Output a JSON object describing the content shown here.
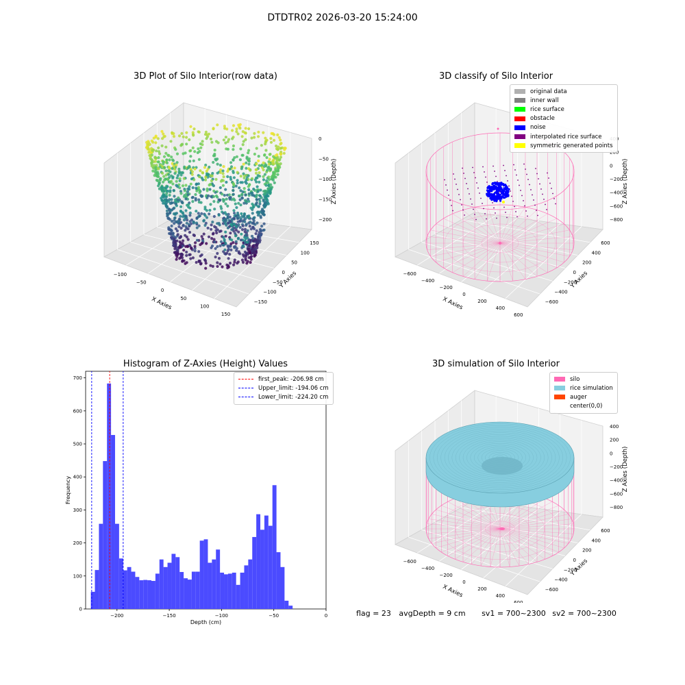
{
  "suptitle": "DTDTR02 2026-03-20 15:24:00",
  "footer": {
    "flag": "flag = 23",
    "avg_depth": "avgDepth = 9 cm",
    "sv1": "sv1 = 700~2300",
    "sv2": "sv2 = 700~2300"
  },
  "colors": {
    "histogram_bar": "#4b4bff",
    "first_peak_line": "#ff0000",
    "limit_lines": "#0000ff",
    "silo_wire": "#ff69b4",
    "rice_surface": "#87cedf",
    "noise_blob": "#0000ff"
  },
  "chart_data": [
    {
      "type": "scatter",
      "title": "3D Plot of Silo Interior(row data)",
      "xlabel": "X Axies",
      "ylabel": "Y Axies",
      "zlabel": "Z Axies (Depth)",
      "x_ticks": [
        "−100",
        "−50",
        "0",
        "50",
        "100",
        "150"
      ],
      "y_ticks": [
        "−150",
        "−100",
        "−50",
        "0",
        "50",
        "100",
        "150"
      ],
      "z_ticks": [
        "0",
        "−50",
        "−100",
        "−150",
        "−200"
      ],
      "xlim": [
        -130,
        150
      ],
      "ylim": [
        -160,
        160
      ],
      "zlim": [
        -220,
        0
      ],
      "colormap": "viridis"
    },
    {
      "type": "scatter",
      "title": "3D classify of Silo Interior",
      "xlabel": "X Axies",
      "ylabel": "Y Axies",
      "zlabel": "Z Axies (Depth)",
      "x_ticks": [
        "−600",
        "−400",
        "−200",
        "0",
        "200",
        "400",
        "600"
      ],
      "y_ticks": [
        "−600",
        "−400",
        "−200",
        "0",
        "200",
        "400",
        "600"
      ],
      "z_ticks": [
        "400",
        "200",
        "0",
        "−200",
        "−400",
        "−600",
        "−800"
      ],
      "legend": [
        {
          "label": "original data",
          "color": "#b0b0b0"
        },
        {
          "label": "inner wall",
          "color": "#808080"
        },
        {
          "label": "rice surface",
          "color": "#00ff00"
        },
        {
          "label": "obstacle",
          "color": "#ff0000"
        },
        {
          "label": "noise",
          "color": "#0000ff"
        },
        {
          "label": "interpolated rice surface",
          "color": "#800080"
        },
        {
          "label": "symmetric generated points",
          "color": "#ffff00"
        }
      ],
      "legend_position": "upper right"
    },
    {
      "type": "bar",
      "title": "Histogram of Z-Axies (Height) Values",
      "xlabel": "Depth (cm)",
      "ylabel": "Frequency",
      "bin_start": -225,
      "bin_width": 3.86,
      "values": [
        52,
        118,
        258,
        448,
        683,
        527,
        258,
        153,
        117,
        127,
        113,
        97,
        87,
        88,
        87,
        85,
        107,
        150,
        127,
        140,
        167,
        157,
        112,
        93,
        89,
        113,
        113,
        207,
        211,
        140,
        150,
        180,
        110,
        105,
        107,
        110,
        73,
        110,
        132,
        150,
        218,
        287,
        240,
        283,
        252,
        375,
        172,
        127,
        25,
        10
      ],
      "xlim": [
        -230,
        0
      ],
      "ylim": [
        0,
        720
      ],
      "x_ticks": [
        "−200",
        "−150",
        "−100",
        "−50",
        "0"
      ],
      "y_ticks": [
        "0",
        "100",
        "200",
        "300",
        "400",
        "500",
        "600",
        "700"
      ],
      "vlines": [
        {
          "label": "first_peak: -206.98 cm",
          "x": -206.98,
          "color": "#ff0000"
        },
        {
          "label": "Upper_limit: -194.06 cm",
          "x": -194.06,
          "color": "#0000ff"
        },
        {
          "label": "Lower_limit: -224.20 cm",
          "x": -224.2,
          "color": "#0000ff"
        }
      ],
      "legend_position": "upper right"
    },
    {
      "type": "area",
      "title": "3D simulation of Silo Interior",
      "xlabel": "X Axies",
      "ylabel": "Y Axies",
      "zlabel": "Z Axies (Depth)",
      "x_ticks": [
        "−600",
        "−400",
        "−200",
        "0",
        "200",
        "400",
        "600"
      ],
      "y_ticks": [
        "−600",
        "−400",
        "−200",
        "0",
        "200",
        "400",
        "600"
      ],
      "z_ticks": [
        "400",
        "200",
        "0",
        "−200",
        "−400",
        "−600",
        "−800"
      ],
      "legend": [
        {
          "label": "silo",
          "color": "#ff69b4"
        },
        {
          "label": "rice simulation",
          "color": "#87cedf"
        },
        {
          "label": "auger",
          "color": "#ff4500"
        },
        {
          "label": "center(0,0)",
          "color": ""
        }
      ],
      "legend_position": "upper right"
    }
  ]
}
